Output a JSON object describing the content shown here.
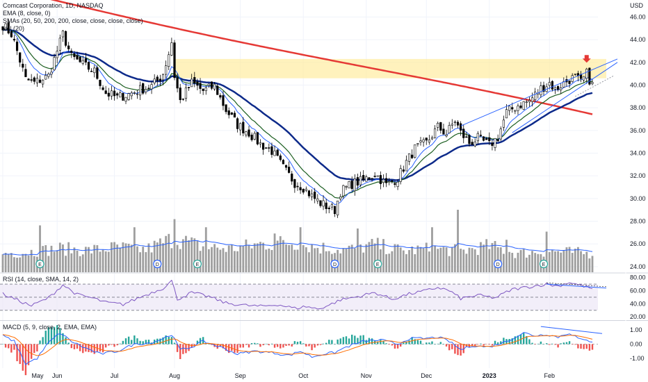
{
  "legend": {
    "title": "Comcast Corporation, 1D, NASDAQ",
    "ema": "EMA (8, close, 0)",
    "smas": "SMAs (20, 50, 200, 200, close, close, close, close)",
    "vol": "Vol (20)",
    "rsi": "RSI (14, close, SMA, 14, 2)",
    "macd": "MACD (5, 9, close, 2, EMA, EMA)"
  },
  "colors": {
    "up": "#26a69a",
    "down": "#ef5350",
    "candle_body_up": "#ffffff",
    "candle_body_down": "#000000",
    "ema": "#2962ff",
    "sma20": "#1b5e20",
    "sma50": "#0d2a8a",
    "sma200": "#e53935",
    "zone": "#ffeb99",
    "trendline": "#2962ff",
    "rsi": "#7e57c2",
    "rsi_band": "#ede7f6",
    "macd": "#2962ff",
    "signal": "#ff6d00",
    "volume": "#9e9e9e",
    "volume_ma": "#2962ff",
    "arrow": "#e53935"
  },
  "chart_data": [
    {
      "type": "candlestick",
      "title": "Comcast Corporation, 1D, NASDAQ",
      "y_unit": "USD",
      "ylim": [
        23.5,
        47.5
      ],
      "y_ticks": [
        "24.00",
        "26.00",
        "28.00",
        "30.00",
        "32.00",
        "34.00",
        "36.00",
        "38.00",
        "40.00",
        "42.00",
        "44.00",
        "46.00"
      ],
      "x_labels": [
        "May",
        "Jun",
        "Jul",
        "Aug",
        "Sep",
        "Oct",
        "Nov",
        "Dec",
        "2023",
        "Feb"
      ],
      "n_bars": 207,
      "x_label_bars": [
        0,
        19,
        39,
        60,
        83,
        105,
        127,
        148,
        170,
        191
      ],
      "price_path": [
        [
          0,
          45.3
        ],
        [
          3,
          44.5
        ],
        [
          5,
          43
        ],
        [
          8,
          40.5
        ],
        [
          11,
          40.2
        ],
        [
          16,
          40.8
        ],
        [
          21,
          44.5
        ],
        [
          24,
          42.5
        ],
        [
          28,
          41.8
        ],
        [
          32,
          41.2
        ],
        [
          36,
          39.3
        ],
        [
          40,
          38.9
        ],
        [
          44,
          39.2
        ],
        [
          48,
          39.6
        ],
        [
          52,
          39.9
        ],
        [
          54,
          40.4
        ],
        [
          56,
          41.0
        ],
        [
          58,
          42.8
        ],
        [
          59,
          43.8
        ],
        [
          60,
          40.8
        ],
        [
          62,
          38.6
        ],
        [
          66,
          40.2
        ],
        [
          70,
          39.5
        ],
        [
          74,
          39.9
        ],
        [
          78,
          37.8
        ],
        [
          82,
          36.5
        ],
        [
          86,
          35.8
        ],
        [
          90,
          34.8
        ],
        [
          94,
          34.2
        ],
        [
          98,
          32.7
        ],
        [
          102,
          31.4
        ],
        [
          105,
          31.0
        ],
        [
          108,
          30.2
        ],
        [
          111,
          29.6
        ],
        [
          114,
          29.2
        ],
        [
          116,
          29.0
        ],
        [
          118,
          30.6
        ],
        [
          122,
          31.3
        ],
        [
          126,
          31.6
        ],
        [
          130,
          32.2
        ],
        [
          134,
          31.2
        ],
        [
          138,
          31.8
        ],
        [
          141,
          33.2
        ],
        [
          144,
          34.4
        ],
        [
          148,
          34.9
        ],
        [
          152,
          36.3
        ],
        [
          155,
          35.7
        ],
        [
          158,
          36.9
        ],
        [
          160,
          35.8
        ],
        [
          163,
          34.9
        ],
        [
          166,
          35.3
        ],
        [
          170,
          34.7
        ],
        [
          173,
          35.4
        ],
        [
          176,
          37.6
        ],
        [
          180,
          38.2
        ],
        [
          184,
          38.6
        ],
        [
          188,
          39.7
        ],
        [
          191,
          40.2
        ],
        [
          193,
          39.6
        ],
        [
          195,
          40.0
        ],
        [
          198,
          40.5
        ],
        [
          200,
          40.7
        ],
        [
          202,
          40.2
        ],
        [
          204,
          41.0
        ],
        [
          206,
          40.0
        ]
      ],
      "volume_ylim": [
        0,
        1.0
      ],
      "volume_path": [
        [
          0,
          0.3
        ],
        [
          10,
          0.33
        ],
        [
          20,
          0.38
        ],
        [
          30,
          0.35
        ],
        [
          40,
          0.4
        ],
        [
          50,
          0.36
        ],
        [
          60,
          0.55
        ],
        [
          70,
          0.4
        ],
        [
          80,
          0.38
        ],
        [
          90,
          0.45
        ],
        [
          100,
          0.48
        ],
        [
          110,
          0.4
        ],
        [
          120,
          0.36
        ],
        [
          130,
          0.44
        ],
        [
          140,
          0.34
        ],
        [
          150,
          0.38
        ],
        [
          160,
          0.34
        ],
        [
          170,
          0.42
        ],
        [
          180,
          0.3
        ],
        [
          190,
          0.34
        ],
        [
          206,
          0.3
        ]
      ],
      "volume_spikes": [
        [
          13,
          0.75
        ],
        [
          46,
          0.72
        ],
        [
          60,
          0.85
        ],
        [
          71,
          0.72
        ],
        [
          95,
          0.62
        ],
        [
          104,
          0.72
        ],
        [
          124,
          0.7
        ],
        [
          150,
          0.72
        ],
        [
          159,
          1.0
        ],
        [
          176,
          0.52
        ],
        [
          190,
          0.65
        ]
      ],
      "markers": [
        {
          "bar": 13,
          "label": "E"
        },
        {
          "bar": 54,
          "label": "D"
        },
        {
          "bar": 68,
          "label": "E"
        },
        {
          "bar": 116,
          "label": "D"
        },
        {
          "bar": 131,
          "label": "E"
        },
        {
          "bar": 173,
          "label": "D"
        },
        {
          "bar": 189,
          "label": "E"
        }
      ]
    },
    {
      "type": "line",
      "title": "RSI (14, close, SMA, 14, 2)",
      "ylim": [
        16,
        86
      ],
      "y_ticks": [
        "20.00",
        "40.00",
        "60.00",
        "80.00"
      ],
      "bands": [
        30,
        70
      ],
      "path": [
        [
          0,
          55
        ],
        [
          6,
          44
        ],
        [
          10,
          37
        ],
        [
          16,
          49
        ],
        [
          21,
          69
        ],
        [
          26,
          54
        ],
        [
          32,
          48
        ],
        [
          36,
          42
        ],
        [
          42,
          39
        ],
        [
          48,
          50
        ],
        [
          52,
          57
        ],
        [
          56,
          64
        ],
        [
          59,
          75
        ],
        [
          61,
          47
        ],
        [
          66,
          57
        ],
        [
          72,
          51
        ],
        [
          78,
          41
        ],
        [
          84,
          38
        ],
        [
          90,
          36
        ],
        [
          96,
          39
        ],
        [
          102,
          33
        ],
        [
          106,
          36
        ],
        [
          110,
          32
        ],
        [
          114,
          38
        ],
        [
          118,
          46
        ],
        [
          124,
          51
        ],
        [
          130,
          57
        ],
        [
          136,
          47
        ],
        [
          142,
          55
        ],
        [
          148,
          60
        ],
        [
          152,
          65
        ],
        [
          156,
          60
        ],
        [
          160,
          48
        ],
        [
          166,
          53
        ],
        [
          172,
          49
        ],
        [
          178,
          62
        ],
        [
          184,
          66
        ],
        [
          190,
          70
        ],
        [
          194,
          67
        ],
        [
          198,
          73
        ],
        [
          202,
          68
        ],
        [
          206,
          63
        ]
      ]
    },
    {
      "type": "line",
      "title": "MACD (5, 9, close, 2, EMA, EMA)",
      "ylim": [
        -1.7,
        1.6
      ],
      "y_ticks": [
        "-1.00",
        "0.00",
        "1.00"
      ],
      "macd_path": [
        [
          0,
          0.6
        ],
        [
          4,
          0.2
        ],
        [
          8,
          -1.4
        ],
        [
          12,
          -1.0
        ],
        [
          16,
          0.1
        ],
        [
          20,
          0.8
        ],
        [
          24,
          0.2
        ],
        [
          28,
          -0.2
        ],
        [
          34,
          -0.7
        ],
        [
          40,
          -0.5
        ],
        [
          46,
          0.0
        ],
        [
          52,
          0.1
        ],
        [
          56,
          0.4
        ],
        [
          59,
          0.7
        ],
        [
          62,
          -0.4
        ],
        [
          66,
          -0.2
        ],
        [
          70,
          0.2
        ],
        [
          76,
          -0.2
        ],
        [
          82,
          -0.7
        ],
        [
          88,
          -0.5
        ],
        [
          94,
          -0.6
        ],
        [
          100,
          -0.8
        ],
        [
          104,
          -0.5
        ],
        [
          108,
          -0.9
        ],
        [
          112,
          -0.7
        ],
        [
          116,
          -0.6
        ],
        [
          120,
          -0.2
        ],
        [
          126,
          0.2
        ],
        [
          132,
          0.3
        ],
        [
          138,
          0.0
        ],
        [
          142,
          0.4
        ],
        [
          148,
          0.4
        ],
        [
          152,
          0.5
        ],
        [
          156,
          0.2
        ],
        [
          160,
          -0.4
        ],
        [
          164,
          -0.1
        ],
        [
          170,
          -0.2
        ],
        [
          176,
          0.2
        ],
        [
          182,
          0.8
        ],
        [
          186,
          0.6
        ],
        [
          190,
          0.7
        ],
        [
          194,
          0.5
        ],
        [
          198,
          0.8
        ],
        [
          202,
          0.3
        ],
        [
          206,
          0.2
        ]
      ]
    }
  ]
}
